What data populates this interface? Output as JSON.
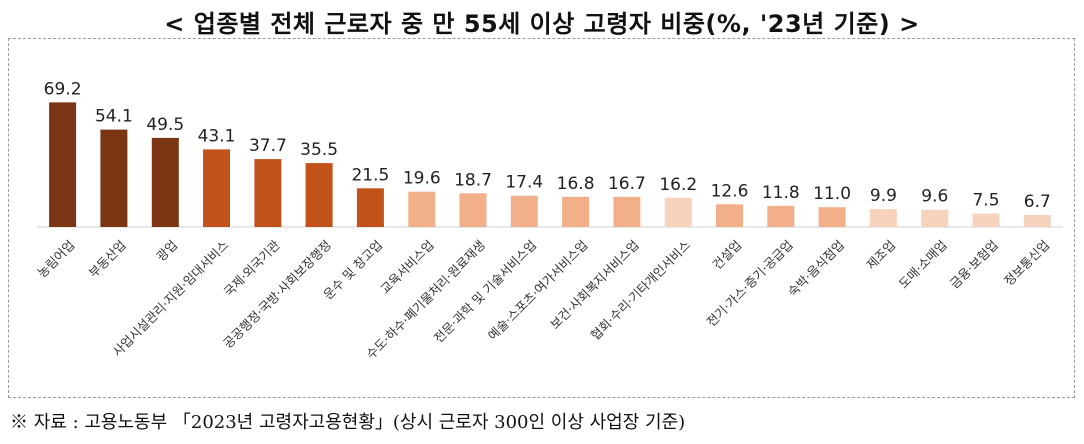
{
  "title": "< 업종별 전체 근로자 중 만 55세 이상 고령자 비중(%, '23년 기준) >",
  "source": "※ 자료 : 고용노동부 「2023년 고령자고용현황」(상시 근로자 300인 이상 사업장 기준)",
  "colors": {
    "dark": "#7a3512",
    "mid": "#c0521a",
    "light": "#f2b08a",
    "pale": "#f7d3bd",
    "baseline": "#d0d0d0"
  },
  "chart_data": {
    "type": "bar",
    "title": "< 업종별 전체 근로자 중 만 55세 이상 고령자 비중(%, '23년 기준) >",
    "xlabel": "",
    "ylabel": "",
    "ylim": [
      0,
      75
    ],
    "grid": false,
    "legend": "none",
    "categories": [
      "농림어업",
      "부동산업",
      "광업",
      "사업시설관리·지원·임대서비스",
      "국제·외국기관",
      "공공행정·국방·사회보장행정",
      "운수 및 창고업",
      "교육서비스업",
      "수도·하수·폐기물처리·원료재생",
      "전문·과학 및 기술서비스업",
      "예술·스포츠·여가서비스업",
      "보건·사회복지서비스업",
      "협회·수리·기타개인서비스",
      "건설업",
      "전기·가스·증기·공급업",
      "숙박·음식점업",
      "제조업",
      "도매·소매업",
      "금융·보험업",
      "정보통신업"
    ],
    "values": [
      69.2,
      54.1,
      49.5,
      43.1,
      37.7,
      35.5,
      21.5,
      19.6,
      18.7,
      17.4,
      16.8,
      16.7,
      16.2,
      12.6,
      11.8,
      11.0,
      9.9,
      9.6,
      7.5,
      6.7
    ],
    "value_labels": [
      "69.2",
      "54.1",
      "49.5",
      "43.1",
      "37.7",
      "35.5",
      "21.5",
      "19.6",
      "18.7",
      "17.4",
      "16.8",
      "16.7",
      "16.2",
      "12.6",
      "11.8",
      "11.0",
      "9.9",
      "9.6",
      "7.5",
      "6.7"
    ],
    "bar_color_groups": [
      "dark",
      "dark",
      "dark",
      "mid",
      "mid",
      "mid",
      "mid",
      "light",
      "light",
      "light",
      "light",
      "light",
      "pale",
      "light",
      "light",
      "light",
      "pale",
      "pale",
      "pale",
      "pale"
    ]
  }
}
